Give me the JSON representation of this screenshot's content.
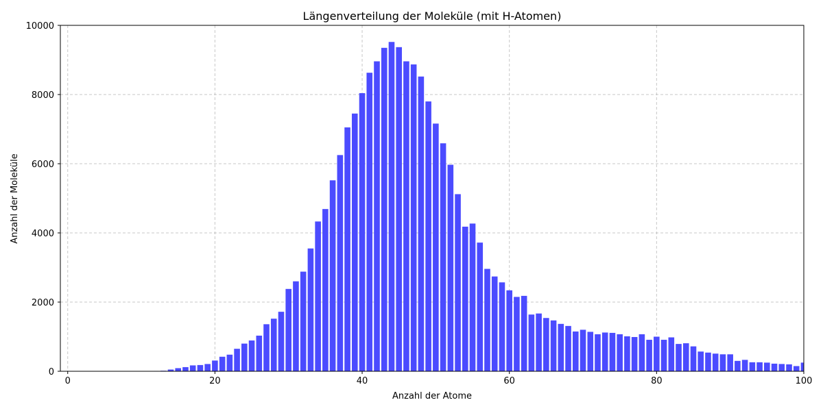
{
  "chart_data": {
    "type": "bar",
    "title": "Längenverteilung der Moleküle (mit H-Atomen)",
    "xlabel": "Anzahl der Atome",
    "ylabel": "Anzahl der Moleküle",
    "xlim": [
      -1,
      100
    ],
    "ylim": [
      0,
      10000
    ],
    "xticks": [
      0,
      20,
      40,
      60,
      80,
      100
    ],
    "yticks": [
      0,
      2000,
      4000,
      6000,
      8000,
      10000
    ],
    "grid": true,
    "bar_color": "#4b4bff",
    "x": [
      11,
      12,
      13,
      14,
      15,
      16,
      17,
      18,
      19,
      20,
      21,
      22,
      23,
      24,
      25,
      26,
      27,
      28,
      29,
      30,
      31,
      32,
      33,
      34,
      35,
      36,
      37,
      38,
      39,
      40,
      41,
      42,
      43,
      44,
      45,
      46,
      47,
      48,
      49,
      50,
      51,
      52,
      53,
      54,
      55,
      56,
      57,
      58,
      59,
      60,
      61,
      62,
      63,
      64,
      65,
      66,
      67,
      68,
      69,
      70,
      71,
      72,
      73,
      74,
      75,
      76,
      77,
      78,
      79,
      80,
      81,
      82,
      83,
      84,
      85,
      86,
      87,
      88,
      89,
      90,
      91,
      92,
      93,
      94,
      95,
      96,
      97,
      98,
      99,
      100
    ],
    "values": [
      5,
      10,
      15,
      50,
      90,
      120,
      170,
      180,
      210,
      310,
      420,
      480,
      650,
      800,
      890,
      1030,
      1360,
      1520,
      1720,
      2380,
      2600,
      2880,
      3550,
      4330,
      4690,
      5520,
      6250,
      7050,
      7450,
      8040,
      8630,
      8960,
      9350,
      9520,
      9370,
      8960,
      8870,
      8520,
      7800,
      7160,
      6590,
      5970,
      5120,
      4180,
      4270,
      3720,
      2960,
      2740,
      2570,
      2340,
      2150,
      2180,
      1640,
      1670,
      1540,
      1470,
      1370,
      1310,
      1150,
      1200,
      1140,
      1070,
      1120,
      1110,
      1070,
      1010,
      990,
      1070,
      910,
      1000,
      910,
      980,
      790,
      810,
      720,
      570,
      540,
      510,
      490,
      490,
      300,
      330,
      260,
      260,
      250,
      220,
      210,
      200,
      150,
      250
    ]
  }
}
